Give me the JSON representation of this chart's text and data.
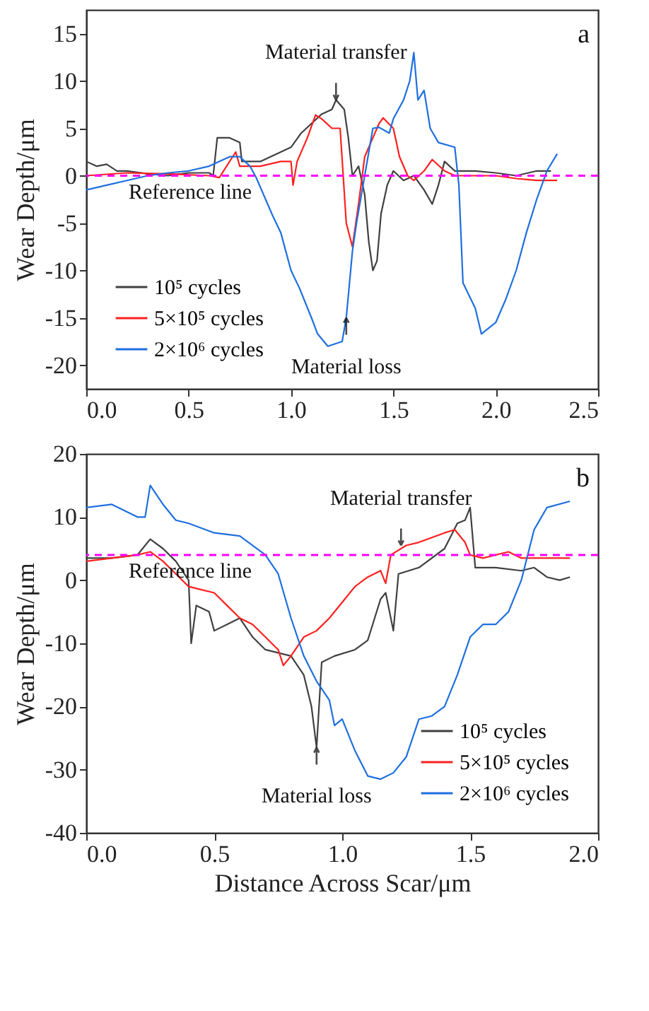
{
  "chart_data": [
    {
      "type": "line",
      "xlim": [
        0,
        2.5
      ],
      "ylim": [
        -22.5,
        17.5
      ],
      "xticks": [
        {
          "value": 0,
          "label": "0.0"
        },
        0.5,
        {
          "value": 1,
          "label": "1.0"
        },
        1.5,
        {
          "value": 2,
          "label": "2.0"
        },
        2.5
      ],
      "yticks": [
        -20,
        -15,
        -10,
        -5,
        0,
        5,
        10,
        15
      ],
      "ylabel": "Wear Depth/μm",
      "grid": false,
      "legend": "bottom left",
      "series": [
        {
          "name": "10⁵ cycles",
          "color": "#404040",
          "x": [
            0.0,
            0.05,
            0.1,
            0.15,
            0.2,
            0.3,
            0.4,
            0.5,
            0.6,
            0.62,
            0.64,
            0.7,
            0.75,
            0.76,
            0.85,
            0.95,
            1.0,
            1.05,
            1.1,
            1.15,
            1.2,
            1.22,
            1.26,
            1.28,
            1.3,
            1.33,
            1.36,
            1.38,
            1.4,
            1.42,
            1.44,
            1.47,
            1.5,
            1.55,
            1.6,
            1.65,
            1.69,
            1.72,
            1.75,
            1.8,
            1.9,
            2.0,
            2.1,
            2.2,
            2.27
          ],
          "values": [
            1.5,
            1,
            1.2,
            0.5,
            0.5,
            0.2,
            0,
            0.3,
            0.3,
            0,
            4,
            4,
            3.5,
            1.5,
            1.5,
            2.5,
            3,
            4.5,
            5.5,
            6.5,
            7,
            8,
            7,
            4,
            0,
            1,
            -2,
            -7,
            -10,
            -9,
            -4,
            -1,
            0.5,
            -0.5,
            0,
            -1.5,
            -3,
            -1,
            1.5,
            0.5,
            0.5,
            0.3,
            0,
            0.5,
            0.5
          ]
        },
        {
          "name": "5×10⁵ cycles",
          "color": "#ff2020",
          "x": [
            0.0,
            0.2,
            0.4,
            0.6,
            0.65,
            0.73,
            0.75,
            0.8,
            0.85,
            0.95,
            1.0,
            1.01,
            1.03,
            1.08,
            1.12,
            1.15,
            1.2,
            1.24,
            1.27,
            1.3,
            1.33,
            1.36,
            1.4,
            1.43,
            1.45,
            1.5,
            1.53,
            1.57,
            1.6,
            1.65,
            1.69,
            1.75,
            1.8,
            2.0,
            2.1,
            2.2,
            2.3
          ],
          "values": [
            0,
            0.3,
            0.2,
            0,
            -0.2,
            2.5,
            1,
            1,
            1,
            1.5,
            1.5,
            -1,
            1.5,
            4,
            6.4,
            6,
            5,
            5,
            -5,
            -7.5,
            -3,
            2,
            4,
            5.5,
            6.1,
            5,
            2,
            0,
            -0.5,
            0.5,
            1.7,
            0.5,
            0,
            0,
            -0.3,
            -0.5,
            -0.5
          ]
        },
        {
          "name": "2×10⁶ cycles",
          "color": "#1f6fe0",
          "x": [
            0.0,
            0.1,
            0.2,
            0.3,
            0.4,
            0.5,
            0.6,
            0.7,
            0.75,
            0.8,
            0.83,
            0.91,
            0.95,
            1.0,
            1.04,
            1.1,
            1.13,
            1.18,
            1.25,
            1.27,
            1.3,
            1.32,
            1.36,
            1.4,
            1.43,
            1.48,
            1.5,
            1.55,
            1.58,
            1.6,
            1.62,
            1.65,
            1.68,
            1.72,
            1.8,
            1.82,
            1.84,
            1.9,
            1.93,
            2.0,
            2.05,
            2.1,
            2.15,
            2.2,
            2.25,
            2.3
          ],
          "values": [
            -1.5,
            -1,
            -0.5,
            0,
            0.3,
            0.5,
            1,
            2,
            2,
            1,
            -0.2,
            -4.2,
            -6,
            -10,
            -11.8,
            -15,
            -16.7,
            -18,
            -17.5,
            -15,
            -8,
            -5,
            0,
            5,
            5.1,
            4.5,
            6,
            8,
            10,
            13,
            8,
            9,
            5,
            3.5,
            3,
            -1,
            -11.3,
            -14,
            -16.7,
            -15.5,
            -13,
            -10,
            -6,
            -2.5,
            0.5,
            2.3
          ]
        }
      ],
      "ref_lines": [
        {
          "axis": "y",
          "value": 0,
          "label": "Reference line",
          "color": "#ff00ff",
          "line_style": "dashed"
        }
      ],
      "annotations": [
        "a",
        {
          "text": "Material transfer",
          "x": 1.22,
          "y": 8
        },
        {
          "text": "Material loss",
          "x": 1.27,
          "y": -15
        }
      ]
    },
    {
      "type": "line",
      "xlim": [
        0,
        2.0
      ],
      "ylim": [
        -40,
        20
      ],
      "xticks": [
        {
          "value": 0,
          "label": "0.0"
        },
        0.5,
        {
          "value": 1,
          "label": "1.0"
        },
        1.5,
        {
          "value": 2,
          "label": "2.0"
        }
      ],
      "yticks": [
        -40,
        -30,
        -20,
        -10,
        0,
        10,
        20
      ],
      "xlabel": "Distance Across Scar/μm",
      "ylabel": "Wear Depth/μm",
      "grid": false,
      "legend": "bottom right",
      "series": [
        {
          "name": "10⁵ cycles",
          "color": "#404040",
          "x": [
            0.0,
            0.1,
            0.2,
            0.25,
            0.3,
            0.35,
            0.4,
            0.41,
            0.43,
            0.48,
            0.5,
            0.55,
            0.6,
            0.65,
            0.7,
            0.75,
            0.8,
            0.85,
            0.88,
            0.9,
            0.92,
            0.97,
            1.05,
            1.1,
            1.15,
            1.17,
            1.2,
            1.22,
            1.3,
            1.4,
            1.45,
            1.48,
            1.5,
            1.52,
            1.6,
            1.7,
            1.75,
            1.8,
            1.85,
            1.89
          ],
          "values": [
            3.5,
            3.5,
            4,
            6.5,
            5,
            3,
            0,
            -10,
            -4,
            -5,
            -8,
            -7,
            -6,
            -9,
            -11,
            -11.5,
            -12,
            -15,
            -20,
            -26.5,
            -13,
            -12,
            -11,
            -9.5,
            -3,
            -2,
            -8,
            1,
            2,
            5,
            9,
            9.5,
            11.5,
            2,
            2,
            1.5,
            2,
            0.5,
            0,
            0.5
          ]
        },
        {
          "name": "5×10⁵ cycles",
          "color": "#ff2020",
          "x": [
            0.0,
            0.1,
            0.2,
            0.25,
            0.3,
            0.35,
            0.4,
            0.45,
            0.5,
            0.55,
            0.6,
            0.65,
            0.7,
            0.75,
            0.77,
            0.8,
            0.85,
            0.9,
            0.95,
            1.0,
            1.05,
            1.1,
            1.15,
            1.17,
            1.19,
            1.25,
            1.3,
            1.4,
            1.44,
            1.48,
            1.5,
            1.55,
            1.65,
            1.7,
            1.8,
            1.89
          ],
          "values": [
            3,
            3.5,
            4,
            4.5,
            3,
            1,
            -1,
            -1.5,
            -2,
            -4,
            -6,
            -7,
            -9,
            -11,
            -13.5,
            -12,
            -9,
            -8,
            -6,
            -3.5,
            -1,
            0.5,
            1.5,
            -0.5,
            4,
            5.5,
            6,
            7.5,
            8,
            6,
            4,
            3.5,
            4.5,
            3.5,
            3.5,
            3.5
          ]
        },
        {
          "name": "2×10⁶ cycles",
          "color": "#1f6fe0",
          "x": [
            0.0,
            0.1,
            0.2,
            0.23,
            0.25,
            0.3,
            0.35,
            0.4,
            0.5,
            0.6,
            0.7,
            0.75,
            0.8,
            0.85,
            0.9,
            0.95,
            0.97,
            1.0,
            1.05,
            1.1,
            1.15,
            1.2,
            1.25,
            1.3,
            1.35,
            1.4,
            1.45,
            1.5,
            1.55,
            1.6,
            1.65,
            1.7,
            1.75,
            1.8,
            1.89
          ],
          "values": [
            11.5,
            12,
            10,
            10,
            15,
            12,
            9.5,
            9,
            7.5,
            7,
            4,
            1,
            -6,
            -12,
            -16,
            -19,
            -23,
            -22,
            -27,
            -31,
            -31.5,
            -30.5,
            -28,
            -22,
            -21.5,
            -20,
            -15,
            -9,
            -7,
            -7,
            -5,
            0,
            8,
            11.5,
            12.5
          ]
        }
      ],
      "ref_lines": [
        {
          "axis": "y",
          "value": 4,
          "label": "Reference line",
          "color": "#ff00ff",
          "line_style": "dashed"
        }
      ],
      "annotations": [
        "b",
        {
          "text": "Material transfer",
          "x": 1.23,
          "y": 5.5
        },
        {
          "text": "Material loss",
          "x": 0.9,
          "y": -26.5
        }
      ]
    }
  ]
}
